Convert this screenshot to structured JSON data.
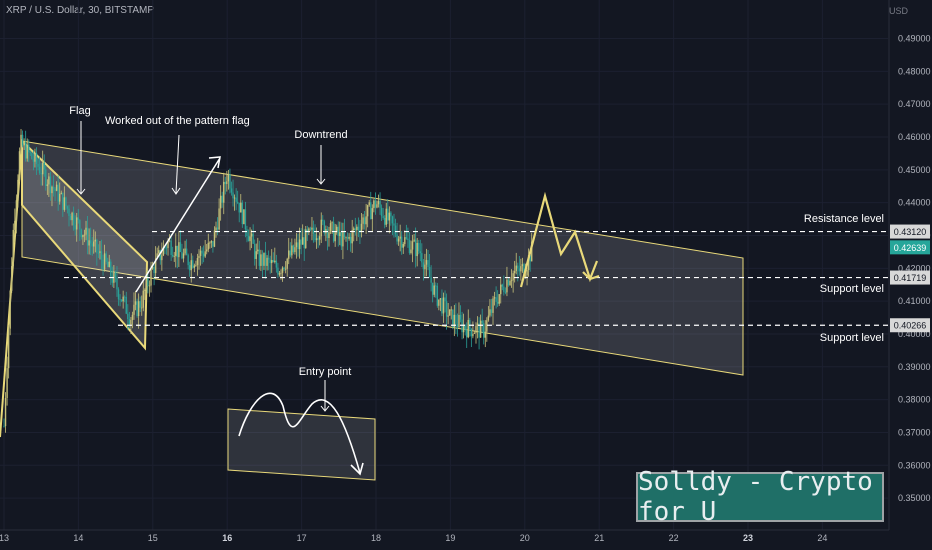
{
  "header": {
    "title": "XRP / U.S. Dollar, 30, BITSTAMP",
    "currency": "USD"
  },
  "watermark": "Solldy - Crypto for U",
  "annotations": {
    "flag": "Flag",
    "worked_out": "Worked out of the pattern flag",
    "downtrend": "Downtrend",
    "entry_point": "Entry point",
    "resistance": "Resistance level",
    "support1": "Support level",
    "support2": "Support level"
  },
  "colors": {
    "bull": "#c8c27a",
    "bear": "#2aa198",
    "annotation": "#e9d97a",
    "line": "#ffffff",
    "current_tag": "#26a69a"
  },
  "chart_data": {
    "type": "candlestick",
    "ylim": [
      0.345,
      0.497
    ],
    "y_ticks": [
      "0.49000",
      "0.48000",
      "0.47000",
      "0.46000",
      "0.45000",
      "0.44000",
      "0.43000",
      "0.42000",
      "0.41000",
      "0.40000",
      "0.39000",
      "0.38000",
      "0.37000",
      "0.36000",
      "0.35000"
    ],
    "x_ticks": [
      "13",
      "14",
      "15",
      "16",
      "17",
      "18",
      "19",
      "20",
      "21",
      "22",
      "23",
      "24"
    ],
    "levels": [
      {
        "name": "Resistance level",
        "value": 0.4312,
        "label": "0.43120"
      },
      {
        "name": "Support level",
        "value": 0.41719,
        "label": "0.41719"
      },
      {
        "name": "Support level",
        "value": 0.40266,
        "label": "0.40266"
      }
    ],
    "current_price": {
      "value": 0.42639,
      "label": "0.42639"
    },
    "price_path": [
      [
        13.0,
        0.372
      ],
      [
        13.12,
        0.43
      ],
      [
        13.22,
        0.458
      ],
      [
        13.5,
        0.45
      ],
      [
        13.8,
        0.44
      ],
      [
        14.1,
        0.43
      ],
      [
        14.4,
        0.42
      ],
      [
        14.7,
        0.405
      ],
      [
        14.85,
        0.41
      ],
      [
        15.0,
        0.42
      ],
      [
        15.2,
        0.428
      ],
      [
        15.5,
        0.422
      ],
      [
        15.8,
        0.427
      ],
      [
        16.0,
        0.449
      ],
      [
        16.15,
        0.44
      ],
      [
        16.4,
        0.423
      ],
      [
        16.7,
        0.42
      ],
      [
        17.0,
        0.428
      ],
      [
        17.3,
        0.433
      ],
      [
        17.6,
        0.428
      ],
      [
        18.0,
        0.44
      ],
      [
        18.3,
        0.43
      ],
      [
        18.6,
        0.425
      ],
      [
        18.8,
        0.412
      ],
      [
        19.0,
        0.405
      ],
      [
        19.2,
        0.402
      ],
      [
        19.45,
        0.401
      ],
      [
        19.6,
        0.41
      ],
      [
        19.8,
        0.418
      ],
      [
        20.0,
        0.42
      ],
      [
        20.1,
        0.426
      ]
    ]
  }
}
